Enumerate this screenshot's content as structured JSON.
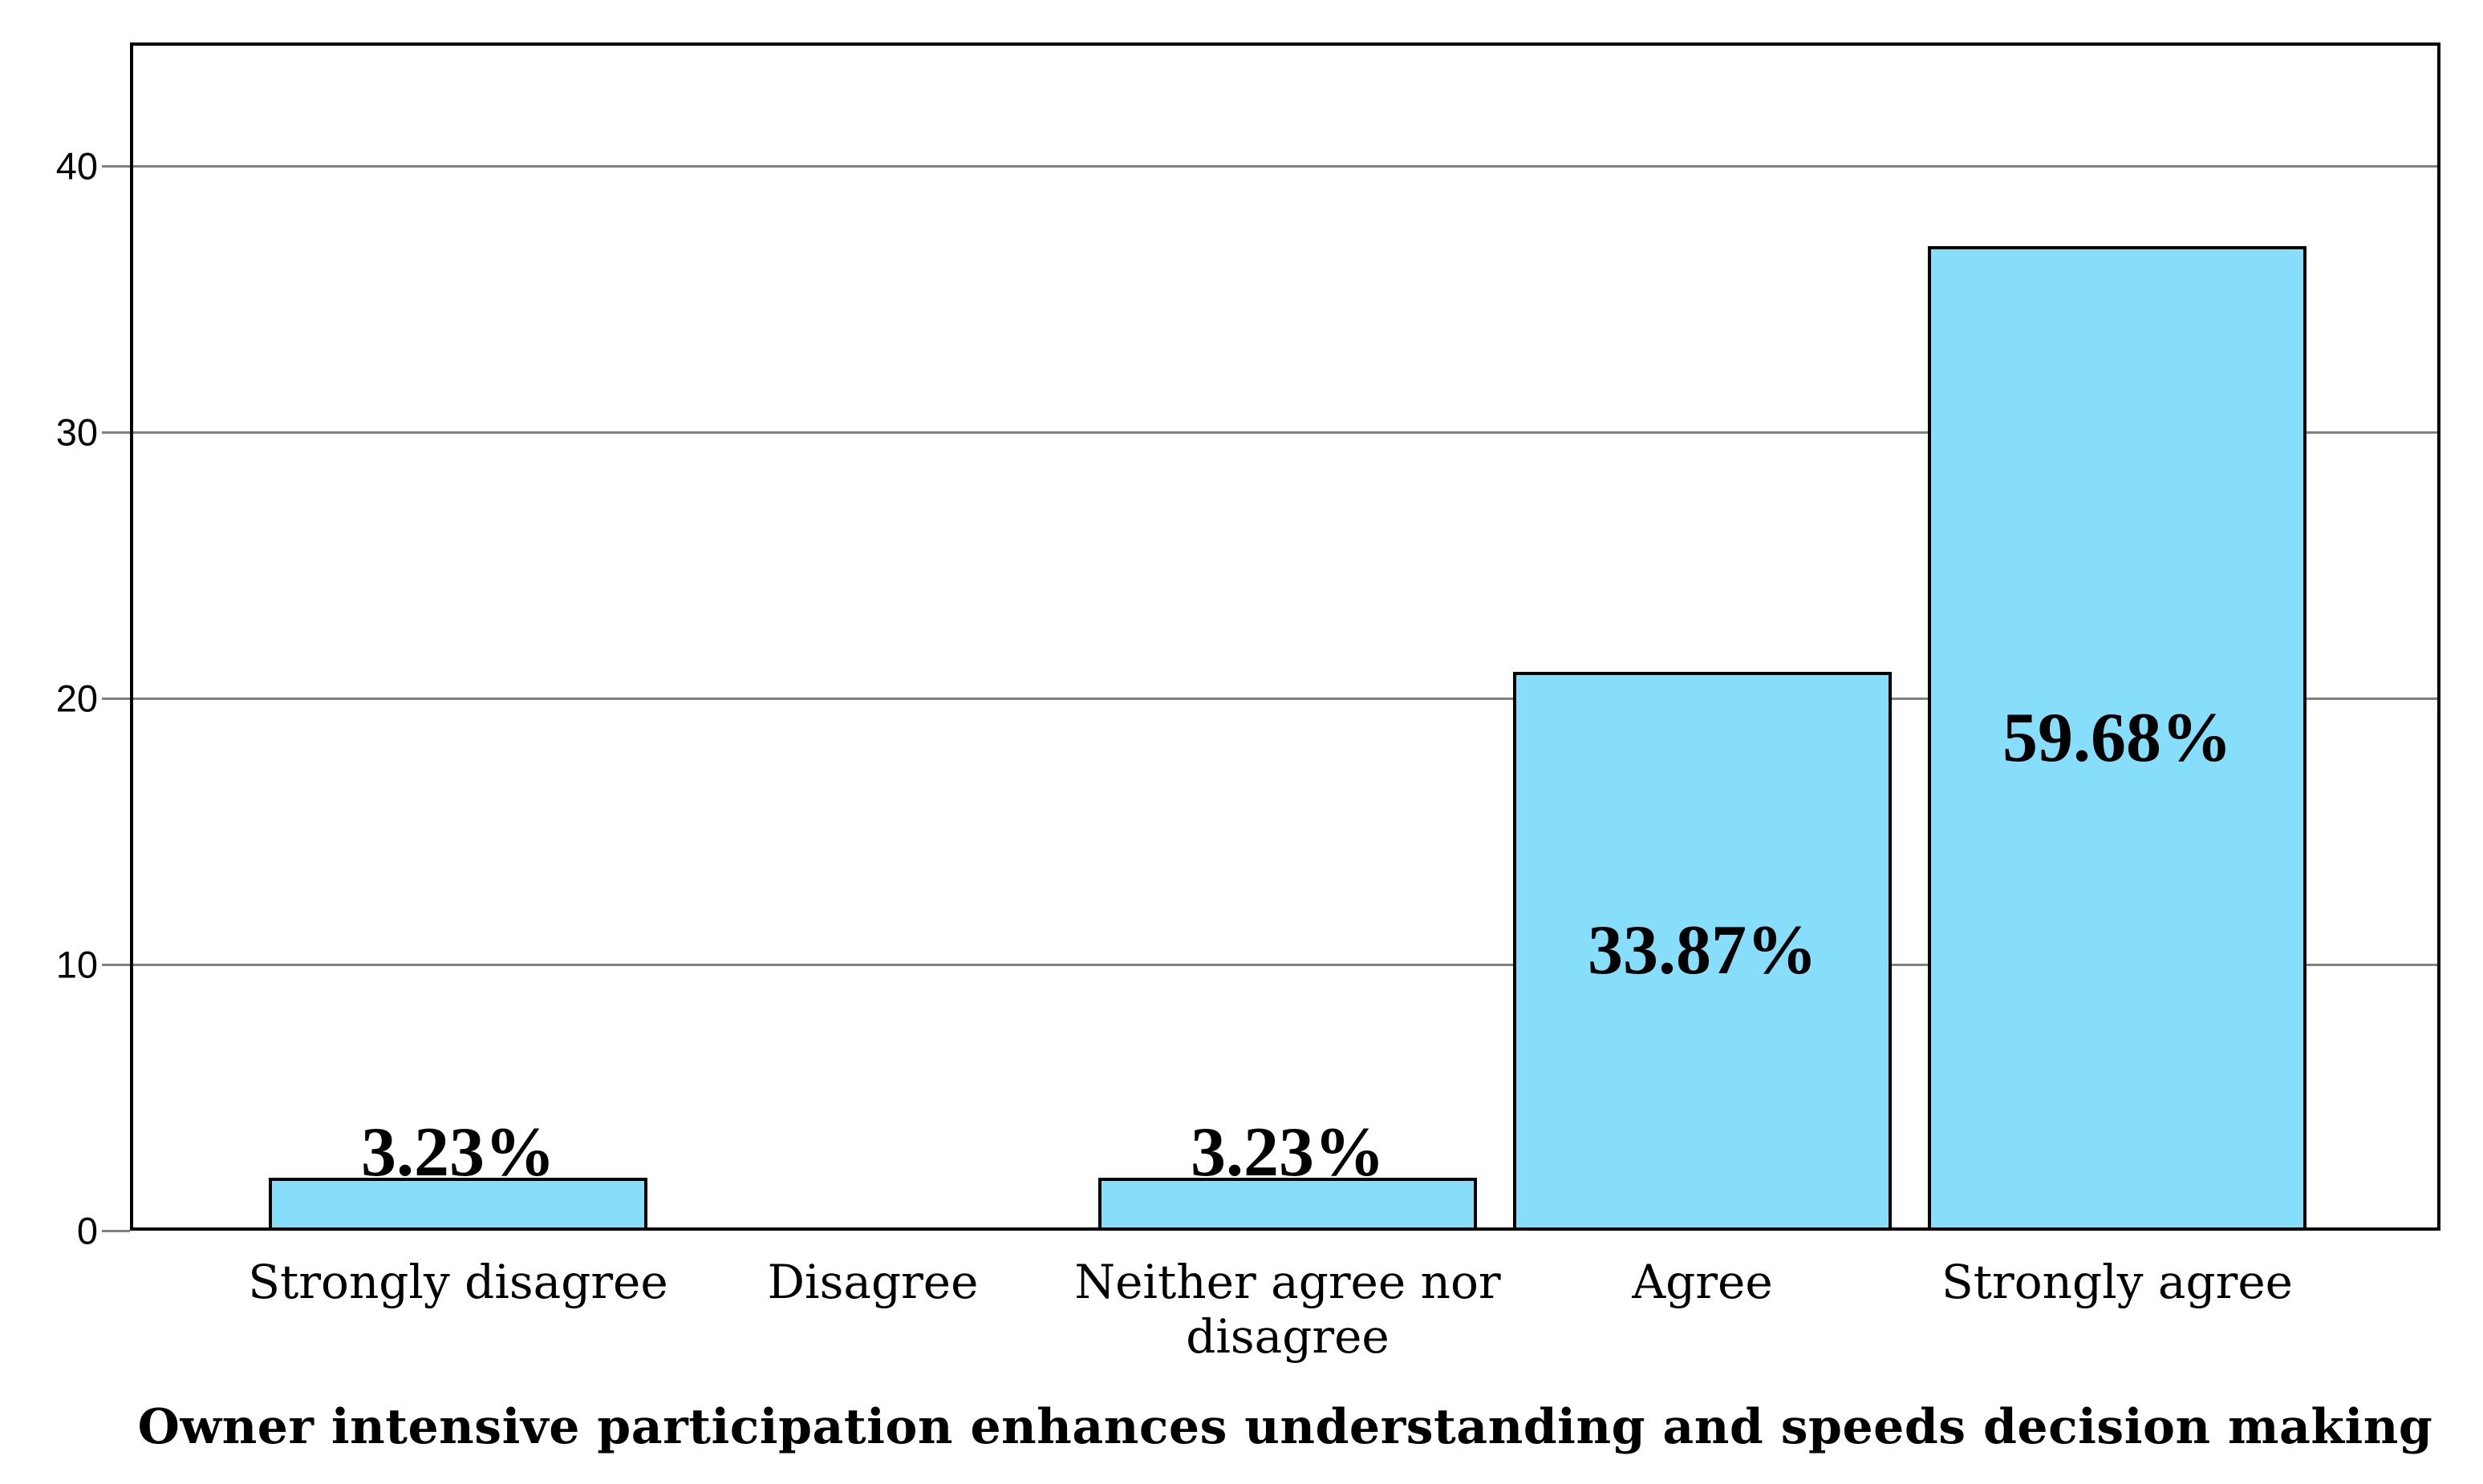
{
  "chart_data": {
    "type": "bar",
    "title": "Owner intensive participation enhances understanding and speeds decision making",
    "categories": [
      "Strongly disagree",
      "Disagree",
      "Neither agree nor disagree",
      "Agree",
      "Strongly agree"
    ],
    "values": [
      2,
      0,
      2,
      21,
      37
    ],
    "data_labels": [
      "3.23%",
      "",
      "3.23%",
      "33.87%",
      "59.68%"
    ],
    "y_ticks": [
      0,
      10,
      20,
      30,
      40
    ],
    "ylim": [
      0,
      44.6
    ],
    "xlabel": "",
    "ylabel": "",
    "legend": "none",
    "grid": "horizontal-gray-lines",
    "colors": {
      "bar_fill": "#87DEFA",
      "bar_border": "#000000",
      "gridline": "#808080",
      "axis": "#000000",
      "background": "#ffffff",
      "text": "#000000"
    }
  }
}
